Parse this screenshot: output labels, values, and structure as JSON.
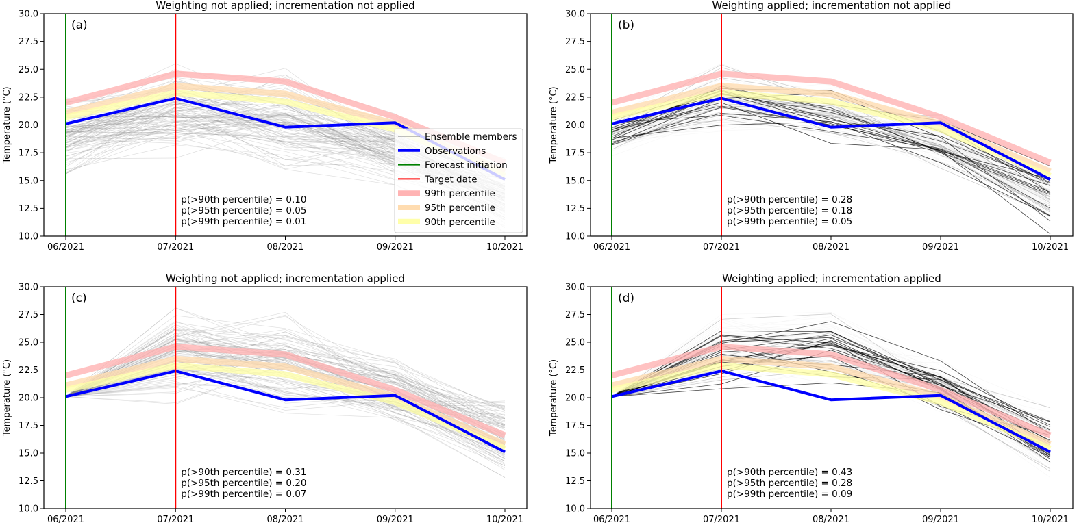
{
  "chart_data": [
    {
      "panel": "(a)",
      "type": "line",
      "title": "Weighting not applied; incrementation not applied",
      "xlabel": "",
      "ylabel": "Temperature (°C)",
      "ylim": [
        10.0,
        30.0
      ],
      "yticks": [
        "10.0",
        "12.5",
        "15.0",
        "17.5",
        "20.0",
        "22.5",
        "25.0",
        "27.5",
        "30.0"
      ],
      "categories": [
        "06/2021",
        "07/2021",
        "08/2021",
        "09/2021",
        "10/2021"
      ],
      "forecast_initiation": "06/2021",
      "target_date": "07/2021",
      "series": [
        {
          "name": "Observations",
          "values": [
            20.1,
            22.4,
            19.8,
            20.2,
            15.1
          ]
        },
        {
          "name": "99th percentile",
          "values": [
            22.0,
            24.6,
            23.9,
            20.7,
            16.6
          ]
        },
        {
          "name": "95th percentile",
          "values": [
            21.1,
            23.5,
            22.8,
            20.1,
            15.8
          ]
        },
        {
          "name": "90th percentile",
          "values": [
            20.7,
            22.9,
            22.1,
            19.6,
            15.4
          ]
        }
      ],
      "ensemble": {
        "count": 100,
        "weighted": false,
        "incremented": false,
        "approx_range": [
          [
            15.6,
            22.6
          ],
          [
            16.7,
            25.5
          ],
          [
            16.0,
            25.1
          ],
          [
            14.6,
            21.0
          ],
          [
            10.2,
            17.0
          ]
        ]
      },
      "annotations": [
        "p(>90th percentile) = 0.10",
        "p(>95th percentile) = 0.05",
        "p(>99th percentile) = 0.01"
      ],
      "legend": {
        "placement": "lower-right",
        "entries": [
          "Ensemble members",
          "Observations",
          "Forecast initiation",
          "Target date",
          "99th percentile",
          "95th percentile",
          "90th percentile"
        ]
      },
      "grid": false
    },
    {
      "panel": "(b)",
      "type": "line",
      "title": "Weighting applied; incrementation not applied",
      "xlabel": "",
      "ylabel": "Temperature (°C)",
      "ylim": [
        10.0,
        30.0
      ],
      "yticks": [
        "10.0",
        "12.5",
        "15.0",
        "17.5",
        "20.0",
        "22.5",
        "25.0",
        "27.5",
        "30.0"
      ],
      "categories": [
        "06/2021",
        "07/2021",
        "08/2021",
        "09/2021",
        "10/2021"
      ],
      "forecast_initiation": "06/2021",
      "target_date": "07/2021",
      "series": [
        {
          "name": "Observations",
          "values": [
            20.1,
            22.4,
            19.8,
            20.2,
            15.1
          ]
        },
        {
          "name": "99th percentile",
          "values": [
            22.0,
            24.6,
            23.9,
            20.7,
            16.6
          ]
        },
        {
          "name": "95th percentile",
          "values": [
            21.1,
            23.5,
            22.8,
            20.1,
            15.8
          ]
        },
        {
          "name": "90th percentile",
          "values": [
            20.7,
            22.9,
            22.1,
            19.6,
            15.4
          ]
        }
      ],
      "ensemble": {
        "count": 100,
        "weighted": true,
        "incremented": false,
        "approx_range": [
          [
            17.2,
            21.6
          ],
          [
            19.0,
            25.5
          ],
          [
            18.3,
            24.1
          ],
          [
            16.1,
            20.9
          ],
          [
            10.2,
            16.6
          ]
        ]
      },
      "annotations": [
        "p(>90th percentile) = 0.28",
        "p(>95th percentile) = 0.18",
        "p(>99th percentile) = 0.05"
      ],
      "grid": false
    },
    {
      "panel": "(c)",
      "type": "line",
      "title": "Weighting not applied; incrementation applied",
      "xlabel": "",
      "ylabel": "Temperature (°C)",
      "ylim": [
        10.0,
        30.0
      ],
      "yticks": [
        "10.0",
        "12.5",
        "15.0",
        "17.5",
        "20.0",
        "22.5",
        "25.0",
        "27.5",
        "30.0"
      ],
      "categories": [
        "06/2021",
        "07/2021",
        "08/2021",
        "09/2021",
        "10/2021"
      ],
      "forecast_initiation": "06/2021",
      "target_date": "07/2021",
      "series": [
        {
          "name": "Observations",
          "values": [
            20.1,
            22.4,
            19.8,
            20.2,
            15.1
          ]
        },
        {
          "name": "99th percentile",
          "values": [
            22.0,
            24.6,
            23.9,
            20.7,
            16.6
          ]
        },
        {
          "name": "95th percentile",
          "values": [
            21.1,
            23.5,
            22.8,
            20.1,
            15.8
          ]
        },
        {
          "name": "90th percentile",
          "values": [
            20.7,
            22.9,
            22.1,
            19.6,
            15.4
          ]
        }
      ],
      "ensemble": {
        "count": 100,
        "weighted": false,
        "incremented": true,
        "approx_range": [
          [
            20.1,
            20.1
          ],
          [
            19.2,
            28.1
          ],
          [
            18.6,
            27.7
          ],
          [
            17.1,
            23.5
          ],
          [
            12.8,
            19.7
          ]
        ]
      },
      "annotations": [
        "p(>90th percentile) = 0.31",
        "p(>95th percentile) = 0.20",
        "p(>99th percentile) = 0.07"
      ],
      "grid": false
    },
    {
      "panel": "(d)",
      "type": "line",
      "title": "Weighting applied; incrementation applied",
      "xlabel": "",
      "ylabel": "Temperature (°C)",
      "ylim": [
        10.0,
        30.0
      ],
      "yticks": [
        "10.0",
        "12.5",
        "15.0",
        "17.5",
        "20.0",
        "22.5",
        "25.0",
        "27.5",
        "30.0"
      ],
      "categories": [
        "06/2021",
        "07/2021",
        "08/2021",
        "09/2021",
        "10/2021"
      ],
      "forecast_initiation": "06/2021",
      "target_date": "07/2021",
      "series": [
        {
          "name": "Observations",
          "values": [
            20.1,
            22.4,
            19.8,
            20.2,
            15.1
          ]
        },
        {
          "name": "99th percentile",
          "values": [
            22.0,
            24.6,
            23.9,
            20.7,
            16.6
          ]
        },
        {
          "name": "95th percentile",
          "values": [
            21.1,
            23.5,
            22.8,
            20.1,
            15.8
          ]
        },
        {
          "name": "90th percentile",
          "values": [
            20.7,
            22.9,
            22.1,
            19.6,
            15.4
          ]
        }
      ],
      "ensemble": {
        "count": 100,
        "weighted": true,
        "incremented": true,
        "approx_range": [
          [
            20.1,
            20.1
          ],
          [
            20.8,
            28.1
          ],
          [
            20.9,
            27.7
          ],
          [
            18.7,
            23.5
          ],
          [
            12.8,
            19.1
          ]
        ]
      },
      "annotations": [
        "p(>90th percentile) = 0.43",
        "p(>95th percentile) = 0.28",
        "p(>99th percentile) = 0.09"
      ],
      "grid": false
    }
  ],
  "colors": {
    "observations": "#0000ff",
    "forecast_initiation": "#008000",
    "target_date": "#ff0000",
    "p99": "#ffb3b3",
    "p95": "#ffdcb0",
    "p90": "#ffffaa",
    "ensemble": "#808080"
  }
}
